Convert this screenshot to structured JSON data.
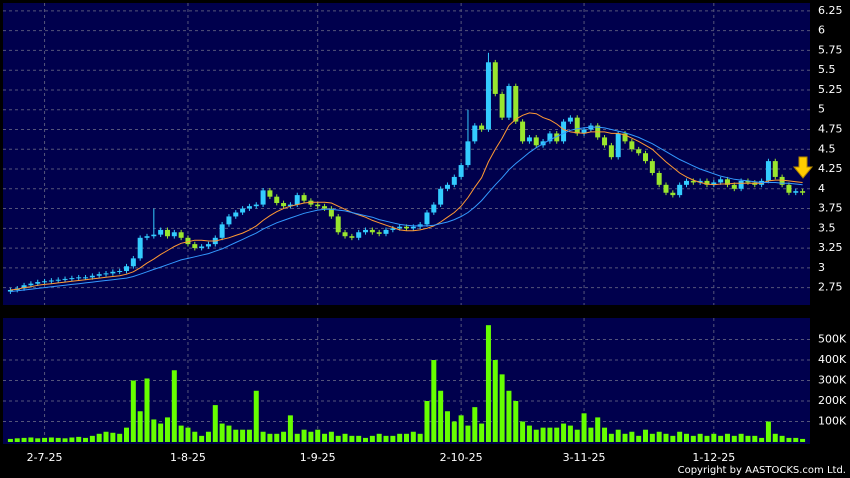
{
  "chart_data": {
    "type": "candlestick",
    "categories": [
      null,
      null,
      null,
      null,
      null,
      "2-7-25",
      null,
      null,
      null,
      null,
      null,
      null,
      null,
      null,
      null,
      null,
      null,
      null,
      null,
      null,
      null,
      null,
      null,
      null,
      null,
      null,
      "1-8-25",
      null,
      null,
      null,
      null,
      null,
      null,
      null,
      null,
      null,
      null,
      null,
      null,
      null,
      null,
      null,
      null,
      null,
      null,
      "1-9-25",
      null,
      null,
      null,
      null,
      null,
      null,
      null,
      null,
      null,
      null,
      null,
      null,
      null,
      null,
      null,
      null,
      null,
      null,
      null,
      null,
      "2-10-25",
      null,
      null,
      null,
      null,
      null,
      null,
      null,
      null,
      null,
      null,
      null,
      null,
      null,
      null,
      null,
      null,
      null,
      "3-11-25",
      null,
      null,
      null,
      null,
      null,
      null,
      null,
      null,
      null,
      null,
      null,
      null,
      null,
      null,
      null,
      null,
      null,
      null,
      "1-12-25",
      null,
      null,
      null,
      null,
      null,
      null,
      null,
      null,
      null,
      null,
      null,
      null,
      null
    ],
    "open": [
      2.7,
      2.72,
      2.74,
      2.78,
      2.8,
      2.82,
      2.83,
      2.84,
      2.85,
      2.86,
      2.87,
      2.88,
      2.88,
      2.9,
      2.92,
      2.93,
      2.95,
      2.96,
      3.02,
      3.12,
      3.38,
      3.4,
      3.42,
      3.48,
      3.4,
      3.45,
      3.38,
      3.3,
      3.25,
      3.27,
      3.3,
      3.38,
      3.55,
      3.65,
      3.7,
      3.75,
      3.78,
      3.8,
      3.98,
      3.9,
      3.82,
      3.78,
      3.8,
      3.92,
      3.85,
      3.8,
      3.78,
      3.75,
      3.65,
      3.45,
      3.4,
      3.38,
      3.45,
      3.48,
      3.45,
      3.43,
      3.48,
      3.5,
      3.52,
      3.5,
      3.52,
      3.55,
      3.7,
      3.8,
      4.0,
      4.05,
      4.15,
      4.3,
      4.6,
      4.8,
      4.75,
      5.6,
      5.2,
      4.9,
      5.3,
      4.85,
      4.6,
      4.65,
      4.55,
      4.6,
      4.7,
      4.6,
      4.85,
      4.9,
      4.7,
      4.75,
      4.8,
      4.65,
      4.55,
      4.4,
      4.7,
      4.6,
      4.5,
      4.45,
      4.35,
      4.2,
      4.05,
      3.95,
      3.92,
      4.05,
      4.1,
      4.08,
      4.1,
      4.05,
      4.08,
      4.12,
      4.05,
      4.0,
      4.1,
      4.08,
      4.05,
      4.1,
      4.35,
      4.15,
      4.05,
      3.95,
      3.97
    ],
    "high": [
      2.75,
      2.77,
      2.81,
      2.83,
      2.85,
      2.86,
      2.87,
      2.88,
      2.89,
      2.9,
      2.91,
      2.91,
      2.93,
      2.95,
      2.96,
      2.98,
      2.99,
      3.05,
      3.15,
      3.41,
      3.43,
      3.75,
      3.51,
      3.51,
      3.48,
      3.48,
      3.41,
      3.33,
      3.3,
      3.33,
      3.41,
      3.58,
      3.68,
      3.73,
      3.78,
      3.81,
      3.83,
      4.01,
      4.01,
      3.93,
      3.85,
      3.83,
      3.95,
      3.95,
      3.88,
      3.83,
      3.81,
      3.78,
      3.68,
      3.48,
      3.43,
      3.48,
      3.51,
      3.51,
      3.48,
      3.51,
      3.53,
      3.55,
      3.55,
      3.55,
      3.58,
      3.73,
      3.83,
      4.03,
      4.08,
      4.18,
      4.33,
      5.0,
      4.83,
      4.83,
      5.72,
      5.63,
      5.23,
      5.33,
      5.33,
      4.88,
      4.68,
      4.68,
      4.63,
      4.73,
      4.73,
      4.88,
      4.93,
      4.93,
      4.78,
      4.83,
      4.83,
      4.68,
      4.58,
      4.73,
      4.73,
      4.63,
      4.53,
      4.48,
      4.38,
      4.23,
      4.08,
      3.98,
      4.08,
      4.13,
      4.13,
      4.13,
      4.13,
      4.11,
      4.15,
      4.15,
      4.08,
      4.13,
      4.13,
      4.11,
      4.13,
      4.38,
      4.38,
      4.18,
      4.08,
      4.0,
      4.0
    ],
    "low": [
      2.67,
      2.69,
      2.71,
      2.75,
      2.77,
      2.79,
      2.8,
      2.81,
      2.82,
      2.83,
      2.84,
      2.85,
      2.85,
      2.87,
      2.89,
      2.9,
      2.92,
      2.93,
      2.99,
      3.09,
      3.35,
      3.37,
      3.39,
      3.37,
      3.37,
      3.35,
      3.27,
      3.22,
      3.22,
      3.24,
      3.27,
      3.35,
      3.52,
      3.62,
      3.67,
      3.72,
      3.75,
      3.77,
      3.87,
      3.79,
      3.75,
      3.75,
      3.77,
      3.82,
      3.77,
      3.75,
      3.72,
      3.62,
      3.42,
      3.37,
      3.35,
      3.35,
      3.42,
      3.42,
      3.4,
      3.4,
      3.45,
      3.47,
      3.47,
      3.47,
      3.49,
      3.52,
      3.67,
      3.77,
      3.97,
      4.02,
      4.12,
      4.27,
      4.57,
      4.72,
      4.72,
      5.17,
      4.87,
      4.87,
      4.82,
      4.57,
      4.57,
      4.52,
      4.52,
      4.57,
      4.57,
      4.57,
      4.82,
      4.67,
      4.67,
      4.72,
      4.62,
      4.52,
      4.37,
      4.37,
      4.57,
      4.47,
      4.42,
      4.32,
      4.17,
      4.02,
      3.92,
      3.89,
      3.89,
      4.02,
      4.05,
      4.05,
      4.02,
      4.02,
      4.05,
      4.02,
      3.97,
      3.97,
      4.05,
      4.02,
      4.02,
      4.07,
      4.12,
      4.02,
      3.92,
      3.92,
      3.92
    ],
    "close": [
      2.72,
      2.74,
      2.78,
      2.8,
      2.82,
      2.83,
      2.84,
      2.85,
      2.86,
      2.87,
      2.88,
      2.88,
      2.9,
      2.92,
      2.93,
      2.95,
      2.96,
      3.02,
      3.12,
      3.38,
      3.4,
      3.42,
      3.48,
      3.4,
      3.45,
      3.38,
      3.3,
      3.25,
      3.27,
      3.3,
      3.38,
      3.55,
      3.65,
      3.7,
      3.75,
      3.78,
      3.8,
      3.98,
      3.9,
      3.82,
      3.78,
      3.8,
      3.92,
      3.85,
      3.8,
      3.78,
      3.75,
      3.65,
      3.45,
      3.4,
      3.38,
      3.45,
      3.48,
      3.45,
      3.43,
      3.48,
      3.5,
      3.52,
      3.5,
      3.52,
      3.55,
      3.7,
      3.8,
      4.0,
      4.05,
      4.15,
      4.3,
      4.6,
      4.8,
      4.75,
      5.6,
      5.2,
      4.9,
      5.3,
      4.85,
      4.6,
      4.65,
      4.55,
      4.6,
      4.7,
      4.6,
      4.85,
      4.9,
      4.7,
      4.75,
      4.8,
      4.65,
      4.55,
      4.4,
      4.7,
      4.6,
      4.5,
      4.45,
      4.35,
      4.2,
      4.05,
      3.95,
      3.92,
      4.05,
      4.1,
      4.08,
      4.1,
      4.05,
      4.08,
      4.12,
      4.05,
      4.0,
      4.1,
      4.08,
      4.05,
      4.1,
      4.35,
      4.15,
      4.05,
      3.95,
      3.97,
      3.95
    ],
    "volume": [
      15000,
      18000,
      20000,
      22000,
      18000,
      20000,
      22000,
      20000,
      18000,
      22000,
      25000,
      20000,
      30000,
      40000,
      50000,
      45000,
      40000,
      70000,
      300000,
      150000,
      310000,
      110000,
      90000,
      120000,
      350000,
      80000,
      70000,
      50000,
      30000,
      50000,
      180000,
      90000,
      80000,
      60000,
      60000,
      60000,
      250000,
      50000,
      40000,
      40000,
      50000,
      130000,
      40000,
      60000,
      50000,
      60000,
      40000,
      50000,
      30000,
      40000,
      30000,
      30000,
      20000,
      30000,
      40000,
      30000,
      30000,
      40000,
      40000,
      50000,
      40000,
      200000,
      400000,
      250000,
      150000,
      100000,
      130000,
      80000,
      170000,
      90000,
      570000,
      400000,
      330000,
      250000,
      200000,
      100000,
      80000,
      60000,
      70000,
      70000,
      70000,
      90000,
      80000,
      60000,
      140000,
      70000,
      120000,
      70000,
      40000,
      60000,
      40000,
      50000,
      30000,
      60000,
      40000,
      50000,
      40000,
      30000,
      50000,
      40000,
      30000,
      40000,
      30000,
      40000,
      30000,
      40000,
      30000,
      40000,
      30000,
      30000,
      20000,
      100000,
      40000,
      30000,
      20000,
      20000,
      15000
    ],
    "ma": [
      {
        "color": "#ff9933",
        "values": [
          2.72,
          2.73,
          2.75,
          2.76,
          2.78,
          2.79,
          2.8,
          2.81,
          2.82,
          2.83,
          2.84,
          2.85,
          2.86,
          2.87,
          2.88,
          2.89,
          2.9,
          2.92,
          2.95,
          3.0,
          3.06,
          3.11,
          3.17,
          3.22,
          3.27,
          3.31,
          3.33,
          3.35,
          3.35,
          3.34,
          3.34,
          3.36,
          3.38,
          3.41,
          3.44,
          3.48,
          3.53,
          3.6,
          3.66,
          3.71,
          3.75,
          3.78,
          3.8,
          3.82,
          3.83,
          3.83,
          3.83,
          3.82,
          3.78,
          3.74,
          3.7,
          3.67,
          3.64,
          3.6,
          3.57,
          3.54,
          3.51,
          3.48,
          3.47,
          3.47,
          3.48,
          3.5,
          3.53,
          3.58,
          3.64,
          3.7,
          3.78,
          3.89,
          4.02,
          4.14,
          4.34,
          4.5,
          4.64,
          4.8,
          4.88,
          4.93,
          4.96,
          4.95,
          4.9,
          4.87,
          4.82,
          4.75,
          4.72,
          4.71,
          4.7,
          4.72,
          4.72,
          4.72,
          4.7,
          4.7,
          4.68,
          4.64,
          4.6,
          4.55,
          4.5,
          4.42,
          4.34,
          4.27,
          4.2,
          4.15,
          4.11,
          4.08,
          4.06,
          4.05,
          4.06,
          4.06,
          4.07,
          4.07,
          4.07,
          4.07,
          4.07,
          4.1,
          4.11,
          4.11,
          4.1,
          4.09,
          4.08
        ]
      },
      {
        "color": "#3399ff",
        "values": [
          2.7,
          2.71,
          2.72,
          2.73,
          2.74,
          2.75,
          2.76,
          2.77,
          2.78,
          2.79,
          2.8,
          2.81,
          2.82,
          2.83,
          2.84,
          2.85,
          2.86,
          2.87,
          2.89,
          2.92,
          2.95,
          2.98,
          3.01,
          3.04,
          3.07,
          3.1,
          3.12,
          3.14,
          3.16,
          3.18,
          3.21,
          3.24,
          3.28,
          3.32,
          3.36,
          3.4,
          3.44,
          3.49,
          3.53,
          3.57,
          3.6,
          3.63,
          3.66,
          3.69,
          3.71,
          3.73,
          3.74,
          3.74,
          3.73,
          3.72,
          3.7,
          3.68,
          3.66,
          3.64,
          3.61,
          3.59,
          3.57,
          3.55,
          3.54,
          3.53,
          3.53,
          3.53,
          3.54,
          3.56,
          3.58,
          3.61,
          3.65,
          3.7,
          3.77,
          3.85,
          3.95,
          4.05,
          4.14,
          4.24,
          4.32,
          4.39,
          4.46,
          4.52,
          4.57,
          4.62,
          4.66,
          4.7,
          4.74,
          4.76,
          4.77,
          4.78,
          4.78,
          4.77,
          4.75,
          4.73,
          4.71,
          4.68,
          4.65,
          4.61,
          4.57,
          4.52,
          4.47,
          4.42,
          4.37,
          4.33,
          4.29,
          4.25,
          4.22,
          4.19,
          4.16,
          4.14,
          4.12,
          4.11,
          4.1,
          4.09,
          4.08,
          4.08,
          4.08,
          4.07,
          4.07,
          4.06,
          4.05
        ]
      }
    ],
    "up_color": "#33ccff",
    "down_color": "#99e62e",
    "volume_color": "#66ff00",
    "ylim": [
      2.53,
      6.35
    ],
    "yticks": [
      {
        "value": 2.75,
        "label": "2.75"
      },
      3,
      {
        "value": 3.25,
        "label": "3.25"
      },
      {
        "value": 3.5,
        "label": "3.5"
      },
      {
        "value": 3.75,
        "label": "3.75"
      },
      4,
      {
        "value": 4.25,
        "label": "4.25"
      },
      {
        "value": 4.5,
        "label": "4.5"
      },
      {
        "value": 4.75,
        "label": "4.75"
      },
      5,
      {
        "value": 5.25,
        "label": "5.25"
      },
      {
        "value": 5.5,
        "label": "5.5"
      },
      {
        "value": 5.75,
        "label": "5.75"
      },
      6,
      {
        "value": 6.25,
        "label": "6.25"
      }
    ],
    "volume_ylim": [
      0,
      605000
    ],
    "volume_yticks": [
      {
        "value": 100000,
        "label": "100K"
      },
      {
        "value": 200000,
        "label": "200K"
      },
      {
        "value": 300000,
        "label": "300K"
      },
      {
        "value": 400000,
        "label": "400K"
      },
      {
        "value": 500000,
        "label": "500K"
      }
    ],
    "grid": true,
    "copyright": "Copyright by AASTOCKS.com Ltd."
  }
}
